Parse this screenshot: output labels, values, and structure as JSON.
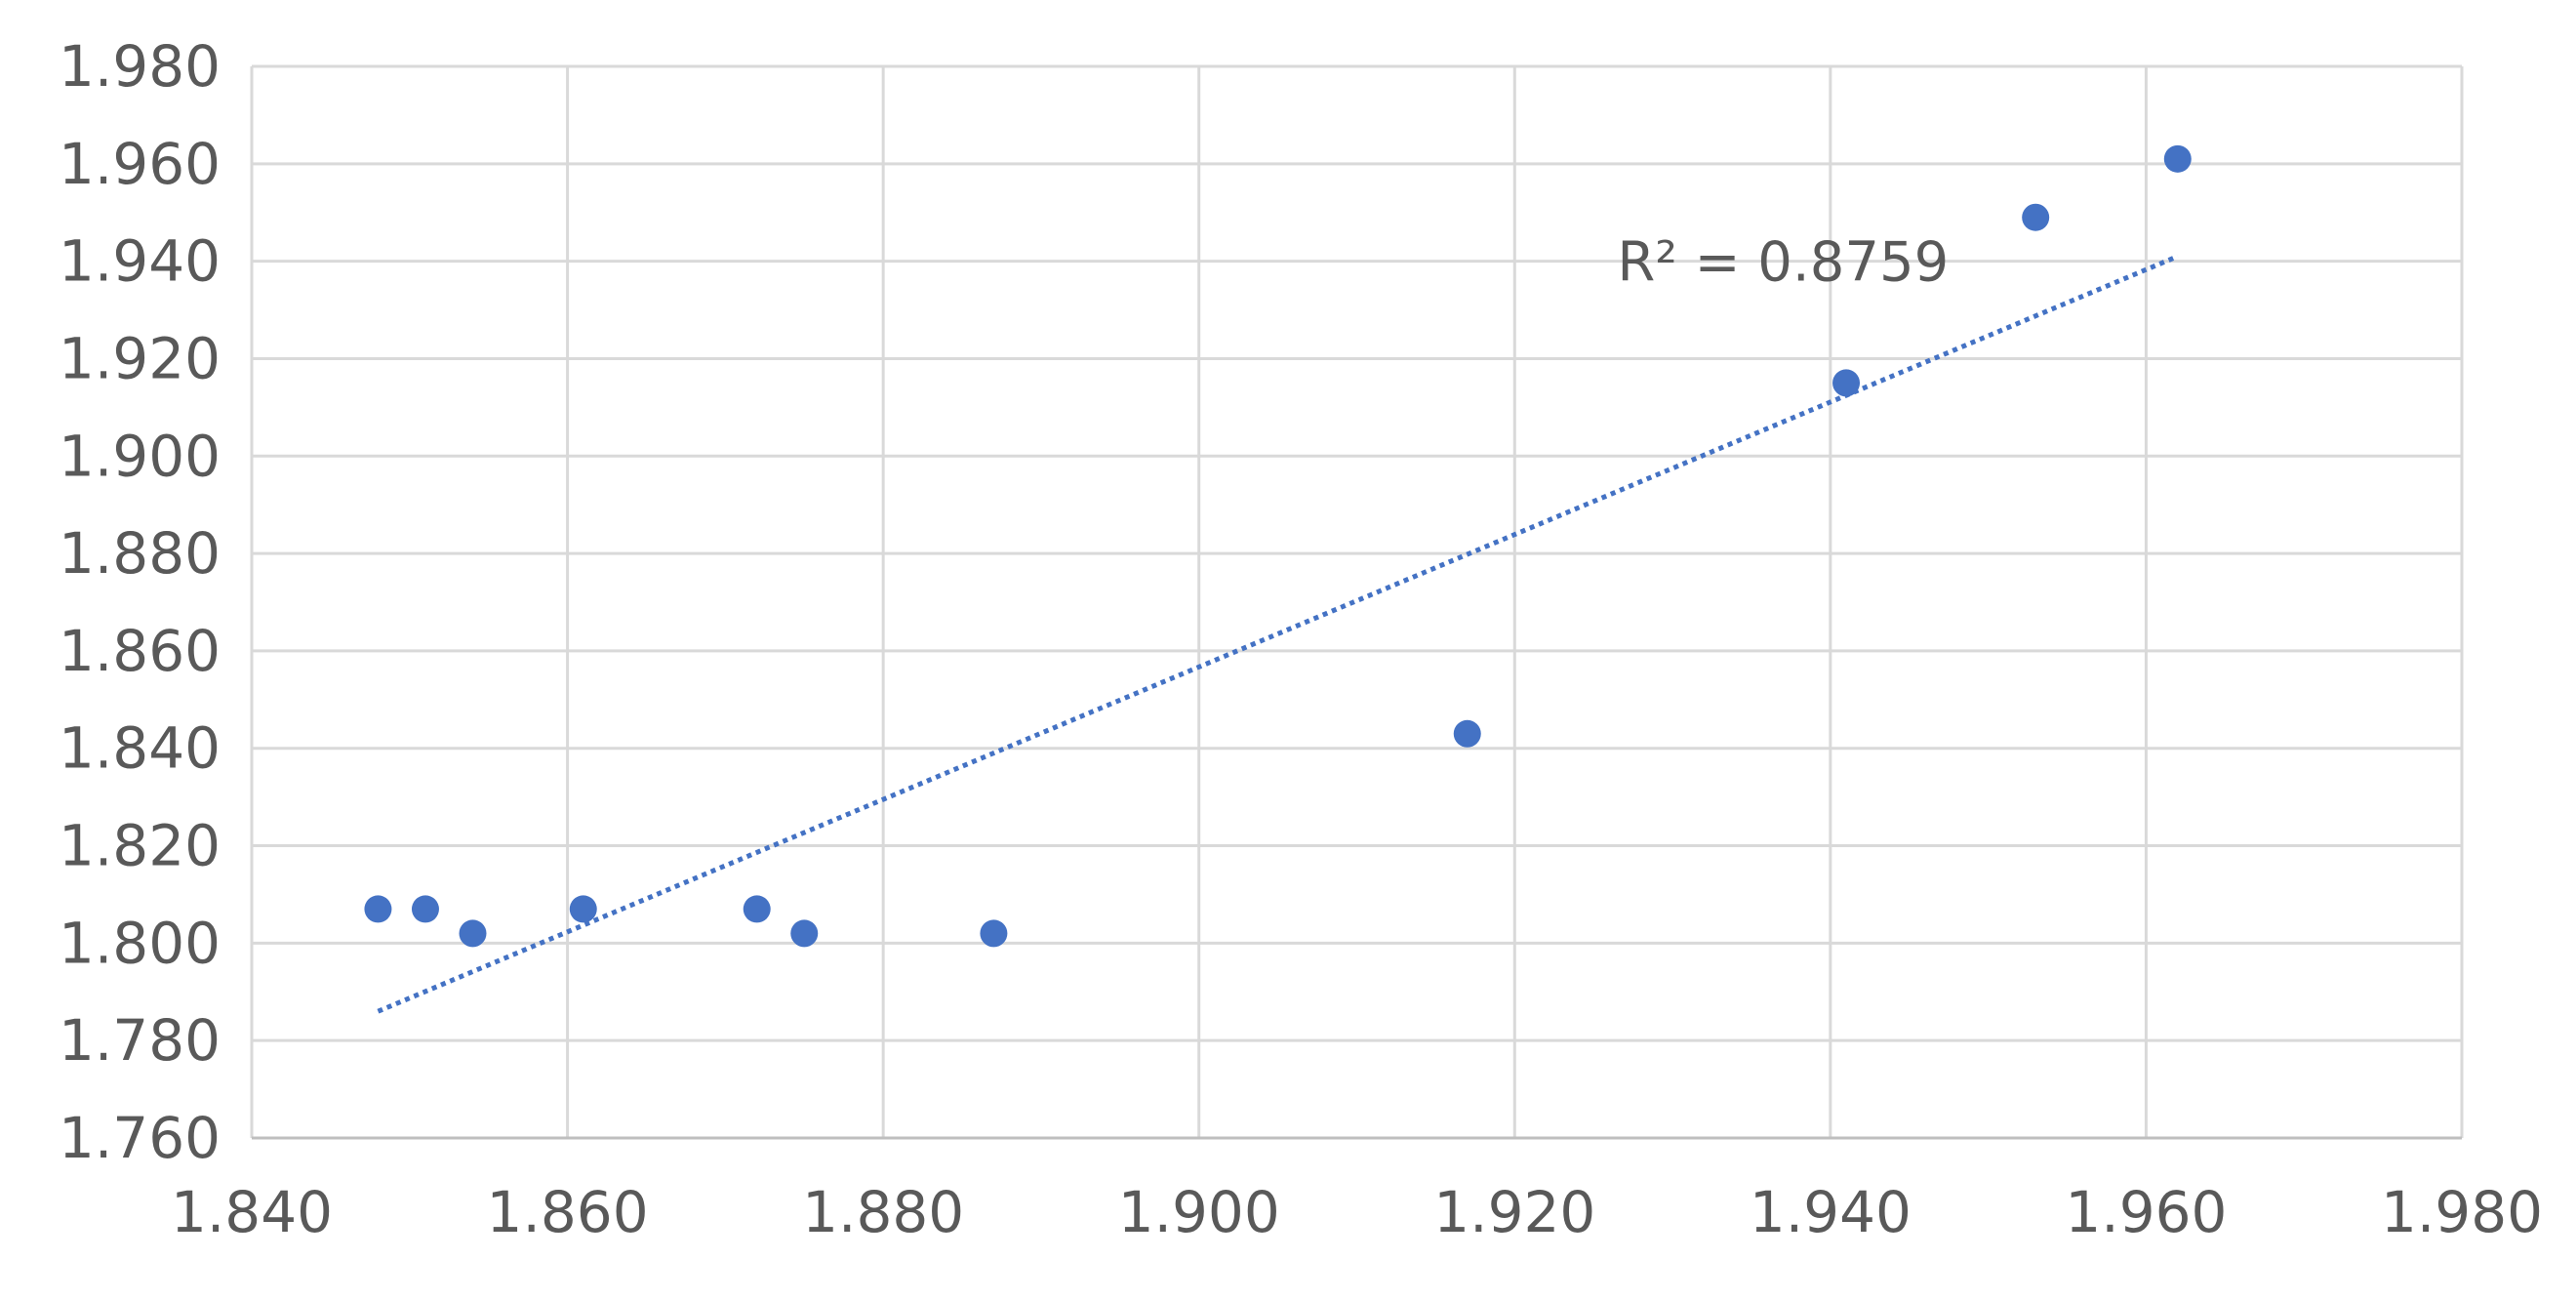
{
  "chart_data": {
    "type": "scatter",
    "title": "",
    "xlabel": "",
    "ylabel": "",
    "xlim": [
      1.84,
      1.98
    ],
    "ylim": [
      1.76,
      1.98
    ],
    "x_ticks": [
      "1.840",
      "1.860",
      "1.880",
      "1.900",
      "1.920",
      "1.940",
      "1.960",
      "1.980"
    ],
    "y_ticks": [
      "1.760",
      "1.780",
      "1.800",
      "1.820",
      "1.840",
      "1.860",
      "1.880",
      "1.900",
      "1.920",
      "1.940",
      "1.960",
      "1.980"
    ],
    "grid": true,
    "legend": "none",
    "series": [
      {
        "points": [
          {
            "x": 1.848,
            "y": 1.807
          },
          {
            "x": 1.851,
            "y": 1.807
          },
          {
            "x": 1.854,
            "y": 1.802
          },
          {
            "x": 1.861,
            "y": 1.807
          },
          {
            "x": 1.872,
            "y": 1.807
          },
          {
            "x": 1.875,
            "y": 1.802
          },
          {
            "x": 1.887,
            "y": 1.802
          },
          {
            "x": 1.917,
            "y": 1.843
          },
          {
            "x": 1.941,
            "y": 1.915
          },
          {
            "x": 1.953,
            "y": 1.949
          },
          {
            "x": 1.962,
            "y": 1.961
          }
        ],
        "color": "#4472C4"
      }
    ],
    "trendline": {
      "type": "linear",
      "x_range": [
        1.848,
        1.962
      ],
      "y_range": [
        1.786,
        1.941
      ],
      "color": "#4472C4",
      "style": "dotted"
    },
    "annotations": [
      {
        "text": "R² = 0.8759",
        "x": 1.937,
        "y": 1.94
      }
    ]
  }
}
